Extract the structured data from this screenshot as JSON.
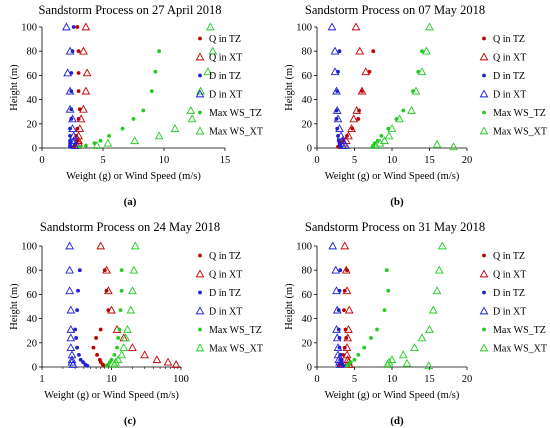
{
  "colors": {
    "q_tz": "#c00000",
    "q_xt": "#c00000",
    "d_tz": "#1f1fd6",
    "d_xt": "#1f1fd6",
    "ws_tz": "#22cc22",
    "ws_xt": "#22cc22"
  },
  "marker_shapes": {
    "Q in TZ": "dot",
    "Q in XT": "triangle",
    "D in TZ": "dot",
    "D in XT": "triangle",
    "Max WS_TZ": "dot",
    "Max WS_XT": "triangle"
  },
  "chart_data": [
    {
      "type": "scatter",
      "panel_label": "(a)",
      "title": "Sandstorm Process on 27 April 2018",
      "xlabel": "Weight (g) or Wind Speed (m/s)",
      "ylabel": "Height (m)",
      "x_scale": "linear",
      "xlim": [
        0,
        15
      ],
      "ylim": [
        0,
        100
      ],
      "xticks": [
        0,
        5,
        10,
        15
      ],
      "yticks": [
        0,
        20,
        40,
        60,
        80,
        100
      ],
      "xtick_labels": [
        "0",
        "5",
        "10",
        "15"
      ],
      "ytick_labels": [
        "0",
        "20",
        "40",
        "60",
        "80",
        "100"
      ],
      "legend": [
        "Q in TZ",
        "Q in XT",
        "D in TZ",
        "D in XT",
        "Max WS_TZ",
        "Max WS_XT"
      ],
      "legend_position": "right",
      "series": [
        {
          "name": "Q in TZ",
          "x": [
            2.9,
            3.0,
            3.0,
            3.0,
            3.1,
            3.0,
            2.9,
            2.8,
            2.9,
            2.8,
            2.7,
            2.6
          ],
          "y": [
            100,
            80,
            62,
            47,
            32,
            24,
            16,
            10,
            6,
            4,
            2,
            1
          ]
        },
        {
          "name": "Q in XT",
          "x": [
            3.6,
            3.4,
            3.7,
            3.6,
            3.4,
            3.2,
            3.1,
            3.0,
            3.0,
            3.0,
            2.9
          ],
          "y": [
            100,
            80,
            62,
            47,
            32,
            24,
            16,
            10,
            6,
            4,
            2
          ]
        },
        {
          "name": "D in TZ",
          "x": [
            2.6,
            2.5,
            2.4,
            2.4,
            2.4,
            2.4,
            2.3,
            2.3,
            2.3,
            2.3,
            2.3,
            2.3
          ],
          "y": [
            100,
            80,
            62,
            47,
            32,
            24,
            16,
            10,
            6,
            4,
            2,
            1
          ]
        },
        {
          "name": "D in XT",
          "x": [
            2.0,
            2.3,
            2.1,
            2.3,
            2.3,
            2.5,
            2.5,
            2.6,
            2.6,
            2.6,
            2.7
          ],
          "y": [
            100,
            80,
            62,
            47,
            32,
            24,
            16,
            10,
            6,
            4,
            2
          ]
        },
        {
          "name": "Max WS_TZ",
          "x": [
            9.6,
            9.3,
            9.0,
            8.3,
            7.5,
            6.6,
            5.5,
            4.8,
            4.3,
            3.6,
            3.1
          ],
          "y": [
            80,
            63,
            47,
            31,
            24,
            16,
            10,
            6,
            4,
            2,
            1
          ]
        },
        {
          "name": "Max WS_XT",
          "x": [
            13.8,
            14.0,
            13.6,
            13.0,
            12.2,
            12.3,
            10.9,
            9.6,
            7.6,
            5.4,
            4.5
          ],
          "y": [
            100,
            80,
            63,
            47,
            31,
            24,
            16,
            10,
            6,
            4,
            2
          ]
        }
      ]
    },
    {
      "type": "scatter",
      "panel_label": "(b)",
      "title": "Sandstorm Process on 07 May 2018",
      "xlabel": "Weight (g) or Wind Speed (m/s)",
      "ylabel": "Height (m)",
      "x_scale": "linear",
      "xlim": [
        0,
        20
      ],
      "ylim": [
        0,
        100
      ],
      "xticks": [
        0,
        5,
        10,
        15,
        20
      ],
      "yticks": [
        0,
        20,
        40,
        60,
        80,
        100
      ],
      "xtick_labels": [
        "0",
        "5",
        "10",
        "15",
        "20"
      ],
      "ytick_labels": [
        "0",
        "20",
        "40",
        "60",
        "80",
        "100"
      ],
      "legend": [
        "Q in TZ",
        "Q in XT",
        "D in TZ",
        "D in XT",
        "Max WS_TZ",
        "Max WS_XT"
      ],
      "legend_position": "right",
      "series": [
        {
          "name": "Q in TZ",
          "x": [
            7.5,
            7.0,
            6.0,
            5.6,
            5.5,
            4.7,
            4.0,
            3.5,
            3.2,
            3.0,
            2.8
          ],
          "y": [
            80,
            63,
            47,
            31,
            24,
            16,
            10,
            6,
            4,
            2,
            1
          ]
        },
        {
          "name": "Q in XT",
          "x": [
            5.2,
            5.7,
            6.5,
            6.0,
            5.3,
            4.9,
            4.6,
            4.2,
            3.9,
            3.6,
            3.4
          ],
          "y": [
            100,
            80,
            63,
            47,
            31,
            24,
            16,
            10,
            6,
            4,
            2
          ]
        },
        {
          "name": "D in TZ",
          "x": [
            3.0,
            2.8,
            2.7,
            2.6,
            2.6,
            2.7,
            2.8,
            2.9,
            3.0,
            3.1,
            3.1
          ],
          "y": [
            80,
            63,
            47,
            31,
            24,
            16,
            10,
            6,
            4,
            2,
            1
          ]
        },
        {
          "name": "D in XT",
          "x": [
            2.0,
            2.4,
            2.4,
            2.6,
            2.7,
            2.8,
            3.0,
            3.2,
            3.4,
            3.6,
            3.8
          ],
          "y": [
            100,
            80,
            63,
            47,
            31,
            24,
            16,
            10,
            6,
            4,
            2
          ]
        },
        {
          "name": "Max WS_TZ",
          "x": [
            14.0,
            13.5,
            12.8,
            11.5,
            10.6,
            9.5,
            8.6,
            8.1,
            7.7,
            7.5,
            7.4
          ],
          "y": [
            80,
            63,
            47,
            31,
            24,
            16,
            10,
            6,
            4,
            2,
            1
          ]
        },
        {
          "name": "Max WS_XT",
          "x": [
            15.0,
            14.6,
            14.0,
            13.2,
            12.6,
            11.0,
            10.0,
            9.6,
            9.0,
            8.4,
            7.8
          ],
          "y": [
            100,
            80,
            63,
            47,
            31,
            24,
            16,
            10,
            6,
            4,
            2
          ]
        },
        {
          "name": "Max WS_XT",
          "x": [
            16.0,
            18.2
          ],
          "y": [
            3,
            1
          ]
        }
      ]
    },
    {
      "type": "scatter",
      "panel_label": "(c)",
      "title": "Sandstorm Process on 24 May 2018",
      "xlabel": "Weight (g) or Wind Speed (m/s)",
      "ylabel": "Height (m)",
      "x_scale": "log",
      "xlim": [
        1,
        100
      ],
      "ylim": [
        0,
        100
      ],
      "xticks": [
        1,
        10,
        100
      ],
      "yticks": [
        0,
        20,
        40,
        60,
        80,
        100
      ],
      "xtick_labels": [
        "1",
        "10",
        "100"
      ],
      "ytick_labels": [
        "0",
        "20",
        "40",
        "60",
        "80",
        "100"
      ],
      "legend": [
        "Q in TZ",
        "Q in XT",
        "D in TZ",
        "D in XT",
        "Max WS_TZ",
        "Max WS_XT"
      ],
      "legend_position": "right",
      "series": [
        {
          "name": "Q in TZ",
          "x": [
            8.0,
            8.5,
            9.0,
            7.0,
            6.0,
            5.5,
            6.2,
            6.8,
            7.0,
            7.5,
            7.8
          ],
          "y": [
            80,
            63,
            47,
            31,
            24,
            16,
            10,
            6,
            4,
            2,
            1
          ]
        },
        {
          "name": "Q in XT",
          "x": [
            7.0,
            8.5,
            9.0,
            10.0,
            12.0,
            15.0,
            20.0,
            30.0,
            45.0,
            65.0,
            85.0
          ],
          "y": [
            100,
            80,
            63,
            47,
            31,
            24,
            16,
            10,
            6,
            4,
            2
          ]
        },
        {
          "name": "D in TZ",
          "x": [
            3.5,
            3.3,
            3.2,
            3.0,
            3.1,
            3.2,
            3.4,
            3.6,
            3.9,
            4.2,
            4.5
          ],
          "y": [
            80,
            63,
            47,
            31,
            24,
            16,
            10,
            6,
            4,
            2,
            1
          ]
        },
        {
          "name": "D in XT",
          "x": [
            2.5,
            2.5,
            2.5,
            2.6,
            2.6,
            2.6,
            2.6,
            2.7,
            2.7,
            2.7,
            2.8
          ],
          "y": [
            100,
            80,
            63,
            47,
            31,
            24,
            16,
            10,
            6,
            4,
            2
          ]
        },
        {
          "name": "Max WS_TZ",
          "x": [
            14.0,
            14.0,
            13.5,
            13.0,
            12.5,
            12.0,
            11.0,
            10.0,
            9.5,
            9.0,
            8.5
          ],
          "y": [
            80,
            63,
            47,
            31,
            24,
            16,
            10,
            6,
            4,
            2,
            1
          ]
        },
        {
          "name": "Max WS_XT",
          "x": [
            22.0,
            21.0,
            20.0,
            19.0,
            17.0,
            16.0,
            15.0,
            14.0,
            12.5,
            11.5,
            11.0
          ],
          "y": [
            100,
            80,
            63,
            47,
            31,
            24,
            16,
            10,
            6,
            4,
            2
          ]
        }
      ]
    },
    {
      "type": "scatter",
      "panel_label": "(d)",
      "title": "Sandstorm Process on 31 May 2018",
      "xlabel": "Weight (g) or Wind Speed (m/s)",
      "ylabel": "Height (m)",
      "x_scale": "linear",
      "xlim": [
        0,
        20
      ],
      "ylim": [
        0,
        100
      ],
      "xticks": [
        0,
        5,
        10,
        15,
        20
      ],
      "yticks": [
        0,
        20,
        40,
        60,
        80,
        100
      ],
      "xtick_labels": [
        "0",
        "5",
        "10",
        "15",
        "20"
      ],
      "ytick_labels": [
        "0",
        "20",
        "40",
        "60",
        "80",
        "100"
      ],
      "legend": [
        "Q in TZ",
        "Q in XT",
        "D in TZ",
        "D in XT",
        "Max WS_TZ",
        "Max WS_XT"
      ],
      "legend_position": "right",
      "series": [
        {
          "name": "Q in TZ",
          "x": [
            4.0,
            3.7,
            3.6,
            3.8,
            3.9,
            3.7,
            3.5,
            3.3,
            3.2,
            3.0,
            2.9
          ],
          "y": [
            80,
            63,
            47,
            31,
            24,
            16,
            10,
            6,
            4,
            2,
            1
          ]
        },
        {
          "name": "Q in XT",
          "x": [
            3.7,
            3.9,
            4.0,
            4.3,
            4.2,
            4.1,
            4.0,
            4.0,
            4.1,
            4.2,
            4.3
          ],
          "y": [
            100,
            80,
            63,
            47,
            31,
            24,
            16,
            10,
            6,
            4,
            2
          ]
        },
        {
          "name": "D in TZ",
          "x": [
            3.1,
            3.0,
            2.9,
            2.9,
            3.0,
            3.0,
            3.1,
            3.2,
            3.3,
            3.4,
            3.5
          ],
          "y": [
            80,
            63,
            47,
            31,
            24,
            16,
            10,
            6,
            4,
            2,
            1
          ]
        },
        {
          "name": "D in XT",
          "x": [
            2.1,
            2.5,
            2.6,
            2.7,
            2.6,
            2.7,
            2.8,
            2.8,
            2.9,
            3.0,
            3.1
          ],
          "y": [
            100,
            80,
            63,
            47,
            31,
            24,
            16,
            10,
            6,
            4,
            2
          ]
        },
        {
          "name": "Max WS_TZ",
          "x": [
            9.3,
            9.5,
            9.0,
            8.0,
            7.2,
            6.3,
            5.5,
            5.0,
            4.5,
            4.2,
            4.0
          ],
          "y": [
            80,
            63,
            47,
            31,
            24,
            16,
            10,
            6,
            4,
            2,
            1
          ]
        },
        {
          "name": "Max WS_XT",
          "x": [
            16.7,
            16.3,
            16.0,
            15.5,
            15.0,
            14.0,
            13.0,
            11.5,
            10.0,
            9.6,
            9.4
          ],
          "y": [
            100,
            80,
            63,
            47,
            31,
            24,
            16,
            10,
            6,
            4,
            2
          ]
        },
        {
          "name": "Max WS_XT",
          "x": [
            12.0,
            14.9
          ],
          "y": [
            3,
            1
          ]
        }
      ]
    }
  ]
}
